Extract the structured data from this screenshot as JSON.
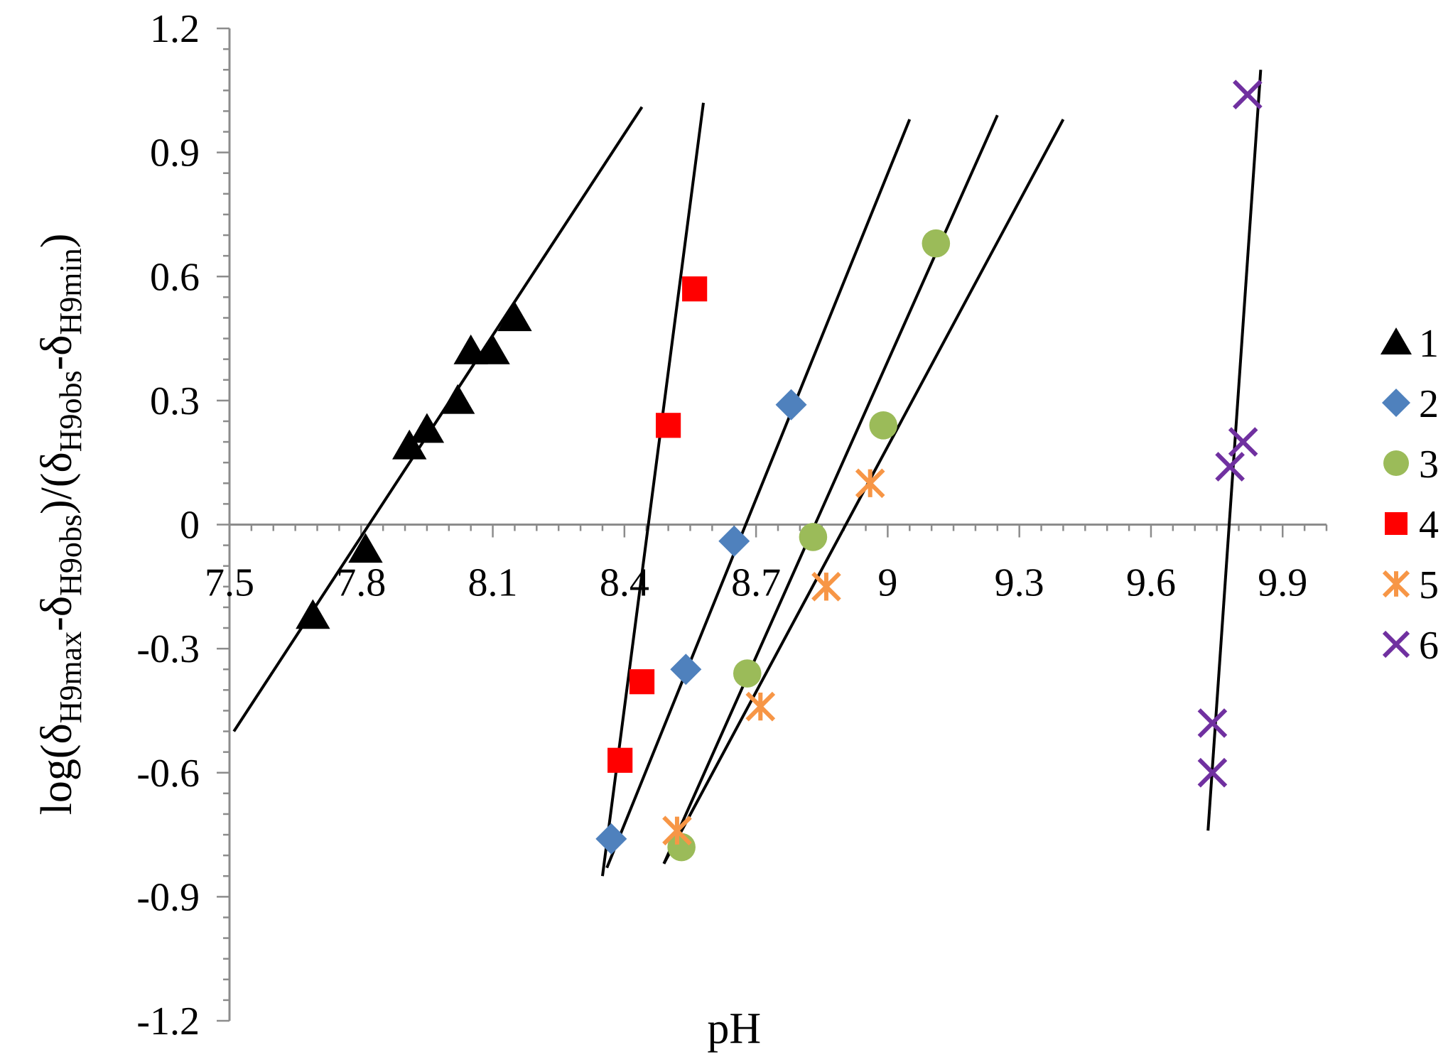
{
  "chart_data": {
    "type": "scatter",
    "xlabel": "pH",
    "ylabel": {
      "prefix": "log(δ",
      "sub1": "H9max",
      "mid1": "-δ",
      "sub2": "H9obs",
      "mid2": ")/(δ",
      "sub3": "H9obs",
      "mid3": "-δ",
      "sub4": "H9min",
      "suffix": ")"
    },
    "xlim": [
      7.5,
      10.0
    ],
    "ylim": [
      -1.2,
      1.2
    ],
    "x_ticks": [
      "7.5",
      "7.8",
      "8.1",
      "8.4",
      "8.7",
      "9",
      "9.3",
      "9.6",
      "9.9"
    ],
    "y_ticks": [
      "1.2",
      "0.9",
      "0.6",
      "0.3",
      "0",
      "-0.3",
      "-0.6",
      "-0.9",
      "-1.2"
    ],
    "legend_position": "right",
    "series": [
      {
        "name": "1",
        "marker": "triangle",
        "color": "#000000",
        "points": [
          [
            7.69,
            -0.22
          ],
          [
            7.81,
            -0.06
          ],
          [
            7.91,
            0.19
          ],
          [
            7.95,
            0.23
          ],
          [
            8.02,
            0.3
          ],
          [
            8.05,
            0.42
          ],
          [
            8.1,
            0.42
          ],
          [
            8.15,
            0.5
          ]
        ],
        "fit": [
          [
            7.51,
            -0.5
          ],
          [
            8.44,
            1.01
          ]
        ]
      },
      {
        "name": "2",
        "marker": "diamond",
        "color": "#4F81BD",
        "points": [
          [
            8.37,
            -0.76
          ],
          [
            8.54,
            -0.35
          ],
          [
            8.65,
            -0.04
          ],
          [
            8.78,
            0.29
          ]
        ],
        "fit": [
          [
            8.36,
            -0.83
          ],
          [
            9.05,
            0.98
          ]
        ]
      },
      {
        "name": "3",
        "marker": "circle",
        "color": "#9BBB59",
        "points": [
          [
            8.53,
            -0.78
          ],
          [
            8.68,
            -0.36
          ],
          [
            8.83,
            -0.03
          ],
          [
            8.99,
            0.24
          ],
          [
            9.11,
            0.68
          ]
        ],
        "fit": [
          [
            8.49,
            -0.82
          ],
          [
            9.25,
            0.99
          ]
        ]
      },
      {
        "name": "4",
        "marker": "square",
        "color": "#FF0000",
        "points": [
          [
            8.39,
            -0.57
          ],
          [
            8.44,
            -0.38
          ],
          [
            8.5,
            0.24
          ],
          [
            8.56,
            0.57
          ]
        ],
        "fit": [
          [
            8.35,
            -0.85
          ],
          [
            8.58,
            1.02
          ]
        ]
      },
      {
        "name": "5",
        "marker": "asterisk",
        "color": "#F79646",
        "points": [
          [
            8.52,
            -0.74
          ],
          [
            8.71,
            -0.44
          ],
          [
            8.86,
            -0.15
          ],
          [
            8.96,
            0.1
          ]
        ],
        "fit": [
          [
            8.49,
            -0.82
          ],
          [
            9.4,
            0.98
          ]
        ]
      },
      {
        "name": "6",
        "marker": "x",
        "color": "#7030A0",
        "points": [
          [
            9.74,
            -0.6
          ],
          [
            9.74,
            -0.48
          ],
          [
            9.78,
            0.14
          ],
          [
            9.81,
            0.2
          ],
          [
            9.82,
            1.04
          ]
        ],
        "fit": [
          [
            9.73,
            -0.74
          ],
          [
            9.85,
            1.1
          ]
        ]
      }
    ]
  }
}
